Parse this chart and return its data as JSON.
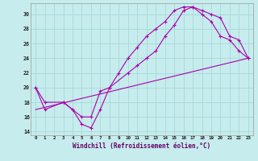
{
  "xlabel": "Windchill (Refroidissement éolien,°C)",
  "background_color": "#c6eced",
  "grid_color": "#a8d8d8",
  "line_color": "#aa00aa",
  "xlim": [
    -0.5,
    23.5
  ],
  "ylim": [
    13.5,
    31.5
  ],
  "xticks": [
    0,
    1,
    2,
    3,
    4,
    5,
    6,
    7,
    8,
    9,
    10,
    11,
    12,
    13,
    14,
    15,
    16,
    17,
    18,
    19,
    20,
    21,
    22,
    23
  ],
  "yticks": [
    14,
    16,
    18,
    20,
    22,
    24,
    26,
    28,
    30
  ],
  "curve1_x": [
    0,
    1,
    3,
    4,
    5,
    6,
    7,
    8,
    9,
    10,
    11,
    12,
    13,
    14,
    15,
    16,
    17,
    18,
    19,
    20,
    21,
    22,
    23
  ],
  "curve1_y": [
    20,
    17,
    18,
    17,
    15,
    14.5,
    17,
    20,
    22,
    24,
    25.5,
    27,
    28,
    29,
    30.5,
    31,
    31,
    30,
    29,
    27,
    26.5,
    25,
    24
  ],
  "curve2_x": [
    0,
    1,
    3,
    4,
    5,
    6,
    7,
    8,
    10,
    11,
    12,
    13,
    14,
    15,
    16,
    17,
    18,
    19,
    20,
    21,
    22,
    23
  ],
  "curve2_y": [
    20,
    18,
    18,
    17,
    16,
    16,
    19.5,
    20,
    22,
    23,
    24,
    25,
    27,
    28.5,
    30.5,
    31,
    30.5,
    30,
    29.5,
    27,
    26.5,
    24
  ],
  "curve3_x": [
    0,
    23
  ],
  "curve3_y": [
    17,
    24
  ]
}
